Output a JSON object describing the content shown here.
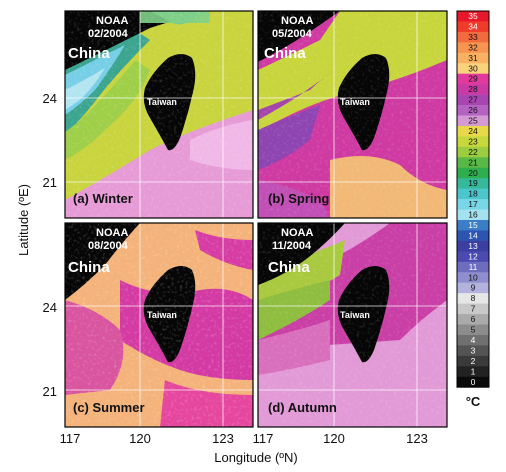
{
  "figure": {
    "y_axis_label": "Latitude (ºE)",
    "x_axis_label": "Longitude (ºN)",
    "lat_ticks": [
      "24",
      "21"
    ],
    "lon_ticks": [
      "117",
      "120",
      "123"
    ],
    "unit_label": "°C",
    "source_label": "NOAA",
    "country_label": "China",
    "island_label": "Taiwan"
  },
  "panels": [
    {
      "id": "a",
      "date": "02/2004",
      "caption": "(a)  Winter",
      "season": "winter"
    },
    {
      "id": "b",
      "date": "05/2004",
      "caption": "(b)  Spring",
      "season": "spring"
    },
    {
      "id": "c",
      "date": "08/2004",
      "caption": "(c)  Summer",
      "season": "summer"
    },
    {
      "id": "d",
      "date": "11/2004",
      "caption": "(d)  Autumn",
      "season": "autumn"
    }
  ],
  "colorbar": {
    "labels": [
      "35",
      "34",
      "33",
      "32",
      "31",
      "30",
      "29",
      "28",
      "27",
      "26",
      "25",
      "24",
      "23",
      "22",
      "21",
      "20",
      "19",
      "18",
      "17",
      "16",
      "15",
      "14",
      "13",
      "12",
      "11",
      "10",
      "9",
      "8",
      "7",
      "6",
      "5",
      "4",
      "3",
      "2",
      "1",
      "0"
    ],
    "colors": [
      "#e8182a",
      "#ef3b2a",
      "#f36a3e",
      "#f7944f",
      "#fab262",
      "#fad27c",
      "#e23a9c",
      "#c93aa5",
      "#a845b0",
      "#b463c3",
      "#d49ad4",
      "#e8d94a",
      "#c6d83e",
      "#9ccc3f",
      "#59b846",
      "#2fae4e",
      "#36b89a",
      "#4cc6cc",
      "#78d6e6",
      "#a4e2ef",
      "#3b7dc6",
      "#2d54b0",
      "#3a3fa1",
      "#4b4ab0",
      "#6d6dc0",
      "#8f8fcf",
      "#b2b2dd",
      "#e6e6e6",
      "#c8c8c8",
      "#aaaaaa",
      "#8c8c8c",
      "#707070",
      "#545454",
      "#3a3a3a",
      "#222222",
      "#0a0a0a"
    ]
  }
}
